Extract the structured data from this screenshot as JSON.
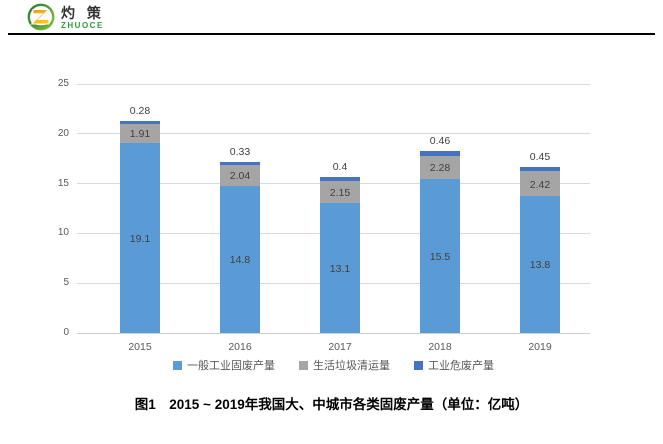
{
  "logo": {
    "name_zh": "灼 策",
    "name_en": "ZHUOCE",
    "green": "#2e9b3e",
    "light_green": "#8dc63f",
    "orange": "#f7941d",
    "yellow": "#ffd217"
  },
  "chart_data": {
    "type": "bar",
    "stacked": true,
    "categories": [
      "2015",
      "2016",
      "2017",
      "2018",
      "2019"
    ],
    "series": [
      {
        "name": "一般工业固废产量",
        "color": "#5b9bd5",
        "values": [
          19.1,
          14.8,
          13.1,
          15.5,
          13.8
        ],
        "labels": [
          "19.1",
          "14.8",
          "13.1",
          "15.5",
          "13.8"
        ]
      },
      {
        "name": "生活垃圾清运量",
        "color": "#a5a5a5",
        "values": [
          1.91,
          2.04,
          2.15,
          2.28,
          2.42
        ],
        "labels": [
          "1.91",
          "2.04",
          "2.15",
          "2.28",
          "2.42"
        ]
      },
      {
        "name": "工业危废产量",
        "color": "#4472c4",
        "values": [
          0.28,
          0.33,
          0.4,
          0.46,
          0.45
        ],
        "labels": [
          "0.28",
          "0.33",
          "0.4",
          "0.46",
          "0.45"
        ]
      }
    ],
    "y_ticks": [
      0,
      5,
      10,
      15,
      20,
      25
    ],
    "ylim": [
      0,
      25
    ],
    "grid": true,
    "legend_position": "bottom",
    "colors": {
      "grid": "#d9d9d9",
      "axis_text": "#595959",
      "data_label": "#404040"
    }
  },
  "caption": "图1　2015 ~ 2019年我国大、中城市各类固废产量（单位：亿吨）"
}
